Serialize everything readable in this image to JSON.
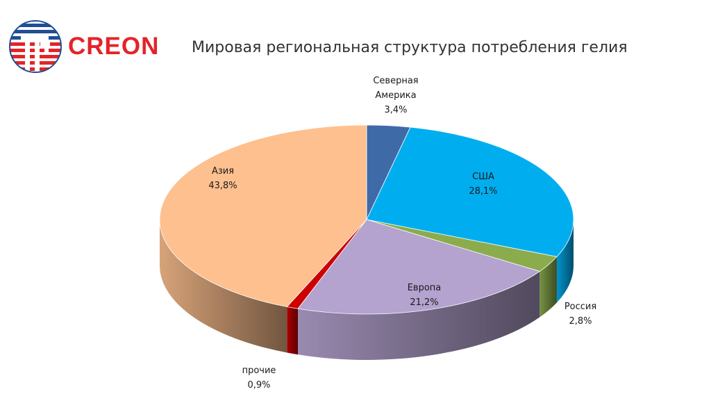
{
  "logo": {
    "text": "CREON"
  },
  "header": {
    "title": "Мировая региональная структура потребления гелия"
  },
  "chart_data": {
    "type": "pie",
    "title": "Мировая региональная структура потребления гелия",
    "series": [
      {
        "name": "Северная Америка",
        "label_lines": [
          "Северная",
          "Америка"
        ],
        "value": 3.4,
        "value_label": "3,4%",
        "color": "#3f6aa8"
      },
      {
        "name": "США",
        "label_lines": [
          "США"
        ],
        "value": 28.1,
        "value_label": "28,1%",
        "color": "#00aeef"
      },
      {
        "name": "Россия",
        "label_lines": [
          "Россия"
        ],
        "value": 2.8,
        "value_label": "2,8%",
        "color": "#8aac4c"
      },
      {
        "name": "Европа",
        "label_lines": [
          "Европа"
        ],
        "value": 21.2,
        "value_label": "21,2%",
        "color": "#b4a2cf"
      },
      {
        "name": "прочие",
        "label_lines": [
          "прочие"
        ],
        "value": 0.9,
        "value_label": "0,9%",
        "color": "#cc0000"
      },
      {
        "name": "Азия",
        "label_lines": [
          "Азия"
        ],
        "value": 43.8,
        "value_label": "43,8%",
        "color": "#fdc08e"
      }
    ]
  }
}
